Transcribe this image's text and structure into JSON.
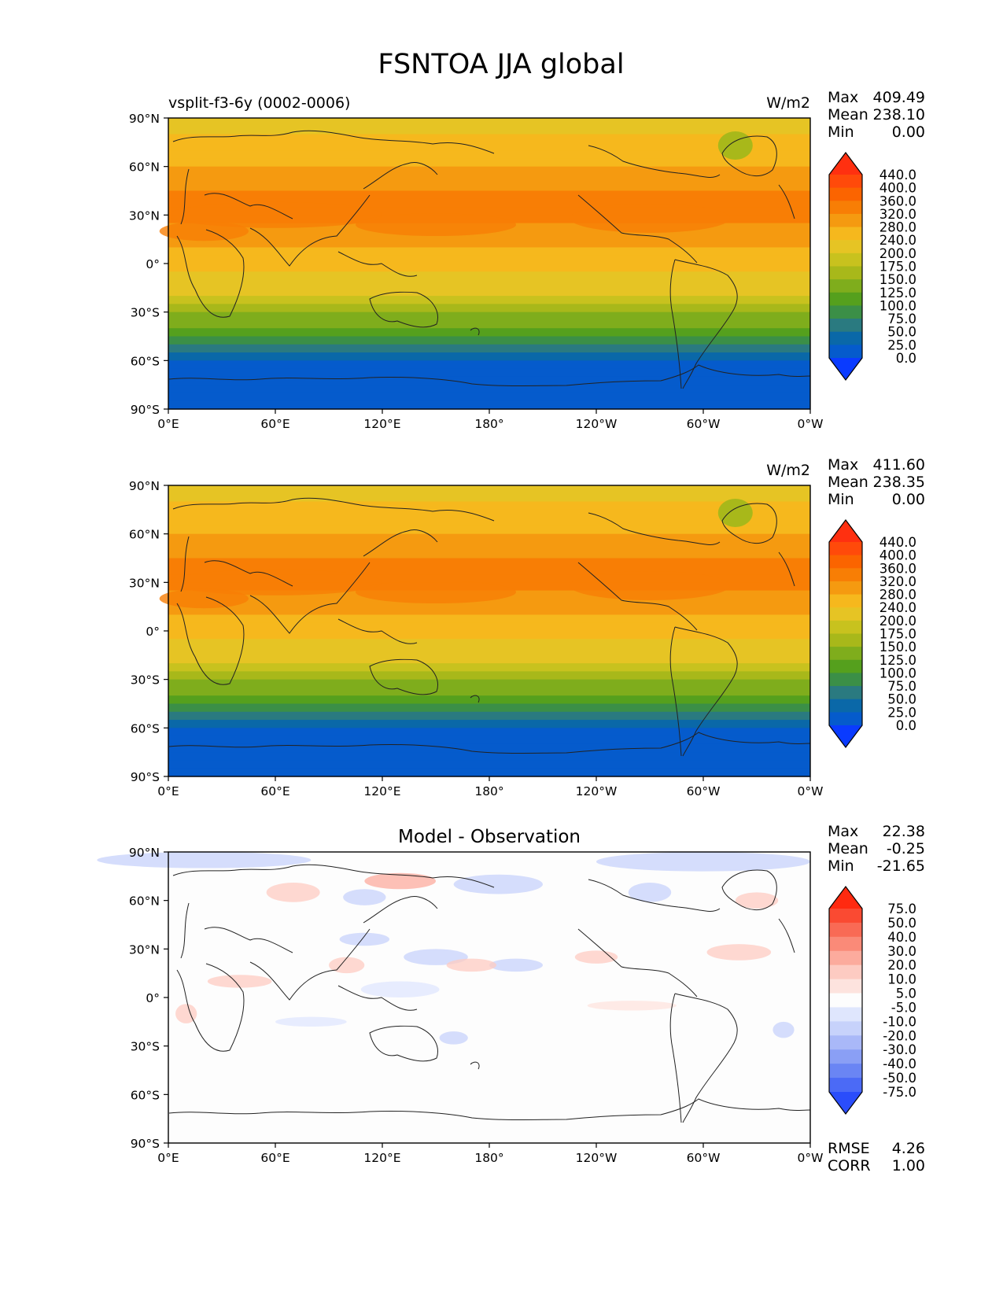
{
  "figure_title": "FSNTOA JJA global",
  "chart_data": [
    {
      "type": "heatmap",
      "name": "test",
      "title_left": "vsplit-f3-6y (0002-0006)",
      "title_center": "",
      "units": "W/m2",
      "xlabel": "",
      "ylabel": "",
      "xlim": [
        0,
        360
      ],
      "ylim": [
        -90,
        90
      ],
      "x_ticks": [
        "0°E",
        "60°E",
        "120°E",
        "180°",
        "120°W",
        "60°W",
        "0°W"
      ],
      "y_ticks": [
        "90°N",
        "60°N",
        "30°N",
        "0°",
        "30°S",
        "60°S",
        "90°S"
      ],
      "stats": [
        {
          "label": "Max",
          "value": "409.49"
        },
        {
          "label": "Mean",
          "value": "238.10"
        },
        {
          "label": "Min",
          "value": "0.00"
        }
      ],
      "colorbar": {
        "levels": [
          "440.0",
          "400.0",
          "360.0",
          "320.0",
          "280.0",
          "240.0",
          "200.0",
          "175.0",
          "150.0",
          "125.0",
          "100.0",
          "75.0",
          "50.0",
          "25.0",
          "0.0"
        ],
        "colors": [
          "#ff3010",
          "#ff4a0a",
          "#fb6400",
          "#f87e05",
          "#f59a10",
          "#f6b81d",
          "#e6c424",
          "#c8c21e",
          "#a8b81a",
          "#7fad1c",
          "#55a01d",
          "#3b8f47",
          "#2a7a80",
          "#0a68a8",
          "#055bcc",
          "#0a3bff"
        ],
        "extend": "both"
      },
      "zonal_profile": {
        "lat": [
          90,
          75,
          60,
          45,
          30,
          15,
          0,
          -15,
          -30,
          -45,
          -60,
          -75,
          -90
        ],
        "values": [
          200,
          250,
          280,
          320,
          330,
          300,
          250,
          220,
          160,
          90,
          20,
          5,
          0
        ]
      }
    },
    {
      "type": "heatmap",
      "name": "reference",
      "title_left": "",
      "title_center": "",
      "units": "W/m2",
      "xlabel": "",
      "ylabel": "",
      "xlim": [
        0,
        360
      ],
      "ylim": [
        -90,
        90
      ],
      "x_ticks": [
        "0°E",
        "60°E",
        "120°E",
        "180°",
        "120°W",
        "60°W",
        "0°W"
      ],
      "y_ticks": [
        "90°N",
        "60°N",
        "30°N",
        "0°",
        "30°S",
        "60°S",
        "90°S"
      ],
      "stats": [
        {
          "label": "Max",
          "value": "411.60"
        },
        {
          "label": "Mean",
          "value": "238.35"
        },
        {
          "label": "Min",
          "value": "0.00"
        }
      ],
      "colorbar": {
        "levels": [
          "440.0",
          "400.0",
          "360.0",
          "320.0",
          "280.0",
          "240.0",
          "200.0",
          "175.0",
          "150.0",
          "125.0",
          "100.0",
          "75.0",
          "50.0",
          "25.0",
          "0.0"
        ],
        "colors": [
          "#ff3010",
          "#ff4a0a",
          "#fb6400",
          "#f87e05",
          "#f59a10",
          "#f6b81d",
          "#e6c424",
          "#c8c21e",
          "#a8b81a",
          "#7fad1c",
          "#55a01d",
          "#3b8f47",
          "#2a7a80",
          "#0a68a8",
          "#055bcc",
          "#0a3bff"
        ],
        "extend": "both"
      },
      "zonal_profile": {
        "lat": [
          90,
          75,
          60,
          45,
          30,
          15,
          0,
          -15,
          -30,
          -45,
          -60,
          -75,
          -90
        ],
        "values": [
          200,
          250,
          280,
          320,
          335,
          300,
          250,
          220,
          160,
          90,
          20,
          5,
          0
        ]
      }
    },
    {
      "type": "heatmap",
      "name": "difference",
      "title_left": "",
      "title_center": "Model - Observation",
      "units": "",
      "xlabel": "",
      "ylabel": "",
      "xlim": [
        0,
        360
      ],
      "ylim": [
        -90,
        90
      ],
      "x_ticks": [
        "0°E",
        "60°E",
        "120°E",
        "180°",
        "120°W",
        "60°W",
        "0°W"
      ],
      "y_ticks": [
        "90°N",
        "60°N",
        "30°N",
        "0°",
        "30°S",
        "60°S",
        "90°S"
      ],
      "stats": [
        {
          "label": "Max",
          "value": "22.38"
        },
        {
          "label": "Mean",
          "value": "-0.25"
        },
        {
          "label": "Min",
          "value": "-21.65"
        }
      ],
      "metrics": [
        {
          "label": "RMSE",
          "value": "4.26"
        },
        {
          "label": "CORR",
          "value": "1.00"
        }
      ],
      "colorbar": {
        "levels": [
          "75.0",
          "50.0",
          "40.0",
          "30.0",
          "20.0",
          "10.0",
          "5.0",
          "-5.0",
          "-10.0",
          "-20.0",
          "-30.0",
          "-40.0",
          "-50.0",
          "-75.0"
        ],
        "colors": [
          "#ff2a10",
          "#fa4a32",
          "#f96a55",
          "#fa8a78",
          "#fcab9d",
          "#fdcbc2",
          "#fde3de",
          "#fdfdfd",
          "#dfe6fd",
          "#c7d2fb",
          "#a9b8f8",
          "#8a9ff5",
          "#6a85f4",
          "#4b6af6",
          "#2a4dfb"
        ],
        "extend": "both"
      }
    }
  ]
}
